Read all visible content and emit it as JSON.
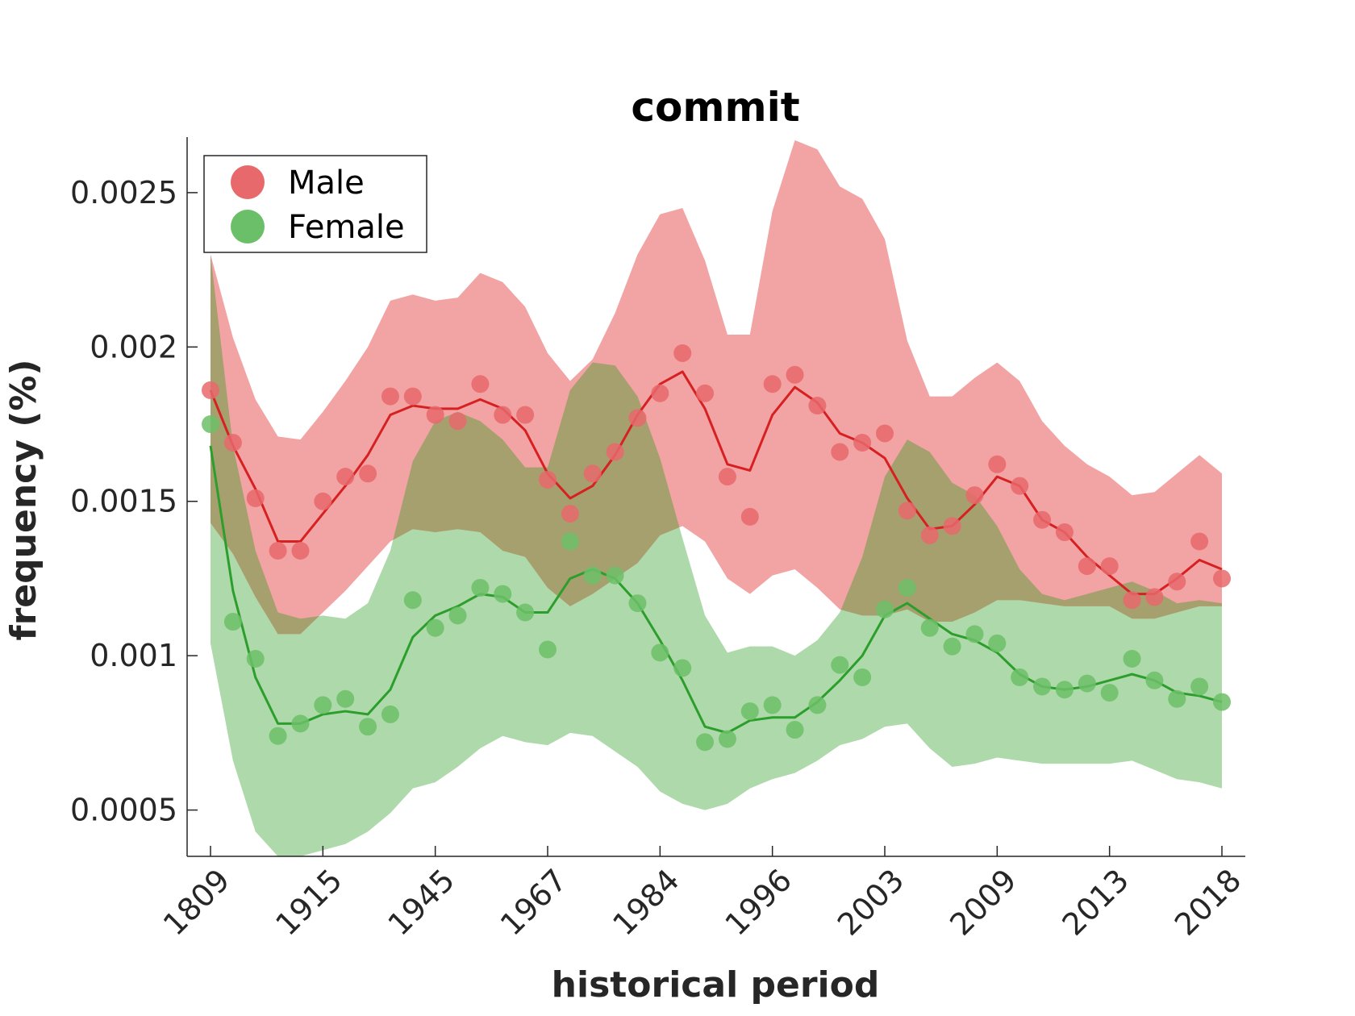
{
  "chart_data": {
    "type": "line",
    "title": "commit",
    "xlabel": "historical period",
    "ylabel": "frequency (%)",
    "ylim": [
      0.00035,
      0.00268
    ],
    "grid": false,
    "legend_placement": "top-left",
    "x_tick_labels": [
      "1809",
      "1915",
      "1945",
      "1967",
      "1984",
      "1996",
      "2003",
      "2009",
      "2013",
      "2018"
    ],
    "y_ticks": [
      0.0005,
      0.001,
      0.0015,
      0.002,
      0.0025
    ],
    "y_tick_labels": [
      "0.0005",
      "0.001",
      "0.0015",
      "0.002",
      "0.0025"
    ],
    "colors": {
      "male_point": "#e8696b",
      "male_line": "#d62021",
      "male_band": "#f2a3a4",
      "female_point": "#6cbf69",
      "female_line": "#2c9e2c",
      "female_band": "#aed9aa",
      "overlap": "#a6a06f",
      "axis": "#262626"
    },
    "legend": [
      {
        "label": "Male",
        "color": "#e8696b"
      },
      {
        "label": "Female",
        "color": "#6cbf69"
      }
    ],
    "series": [
      {
        "name": "Male",
        "points": [
          0.00186,
          0.00169,
          0.00151,
          0.00134,
          0.00134,
          0.0015,
          0.00158,
          0.00159,
          0.00184,
          0.00184,
          0.00178,
          0.00176,
          0.00188,
          0.00178,
          0.00178,
          0.00157,
          0.00146,
          0.00159,
          0.00166,
          0.00177,
          0.00185,
          0.00198,
          0.00185,
          0.00158,
          0.00145,
          0.00188,
          0.00191,
          0.00181,
          0.00166,
          0.00169,
          0.00172,
          0.00147,
          0.00139,
          0.00142,
          0.00152,
          0.00162,
          0.00155,
          0.00144,
          0.0014,
          0.00129,
          0.00129,
          0.00118,
          0.00119,
          0.00124,
          0.00137,
          0.00125
        ],
        "trend": [
          0.00186,
          0.00168,
          0.00154,
          0.00137,
          0.00137,
          0.00146,
          0.00155,
          0.00165,
          0.00178,
          0.00181,
          0.0018,
          0.0018,
          0.00183,
          0.0018,
          0.00173,
          0.00159,
          0.00151,
          0.00155,
          0.00165,
          0.00178,
          0.00188,
          0.00192,
          0.0018,
          0.00162,
          0.0016,
          0.00178,
          0.00187,
          0.00182,
          0.00172,
          0.00169,
          0.00164,
          0.00151,
          0.00141,
          0.00142,
          0.00149,
          0.00158,
          0.00155,
          0.00144,
          0.0014,
          0.00132,
          0.00126,
          0.0012,
          0.0012,
          0.00125,
          0.00131,
          0.00128
        ],
        "band_upper": [
          0.0023,
          0.00203,
          0.00183,
          0.00171,
          0.0017,
          0.00179,
          0.00189,
          0.002,
          0.00215,
          0.00217,
          0.00215,
          0.00216,
          0.00224,
          0.00221,
          0.00213,
          0.00198,
          0.00189,
          0.00196,
          0.00211,
          0.0023,
          0.00243,
          0.00245,
          0.00228,
          0.00204,
          0.00204,
          0.00244,
          0.00267,
          0.00264,
          0.00252,
          0.00248,
          0.00235,
          0.00202,
          0.00184,
          0.00184,
          0.0019,
          0.00195,
          0.00189,
          0.00176,
          0.00168,
          0.00162,
          0.00158,
          0.00152,
          0.00153,
          0.00159,
          0.00165,
          0.00159
        ],
        "band_lower": [
          0.00143,
          0.00133,
          0.00119,
          0.00107,
          0.00107,
          0.00114,
          0.00121,
          0.00129,
          0.00137,
          0.00141,
          0.0014,
          0.00141,
          0.0014,
          0.00134,
          0.00132,
          0.00122,
          0.00116,
          0.0012,
          0.00125,
          0.0013,
          0.00139,
          0.00142,
          0.00137,
          0.00125,
          0.0012,
          0.00126,
          0.00128,
          0.00122,
          0.00115,
          0.00113,
          0.00113,
          0.00115,
          0.00111,
          0.00111,
          0.00114,
          0.00118,
          0.00118,
          0.00117,
          0.00116,
          0.00116,
          0.00116,
          0.00112,
          0.00112,
          0.00114,
          0.00116,
          0.00116
        ]
      },
      {
        "name": "Female",
        "points": [
          0.00175,
          0.00111,
          0.00099,
          0.00074,
          0.00078,
          0.00084,
          0.00086,
          0.00077,
          0.00081,
          0.00118,
          0.00109,
          0.00113,
          0.00122,
          0.0012,
          0.00114,
          0.00102,
          0.00137,
          0.00126,
          0.00126,
          0.00117,
          0.00101,
          0.00096,
          0.00072,
          0.00073,
          0.00082,
          0.00084,
          0.00076,
          0.00084,
          0.00097,
          0.00093,
          0.00115,
          0.00122,
          0.00109,
          0.00103,
          0.00107,
          0.00104,
          0.00093,
          0.0009,
          0.00089,
          0.00091,
          0.00088,
          0.00099,
          0.00092,
          0.00086,
          0.0009,
          0.00085
        ],
        "trend": [
          0.00168,
          0.00121,
          0.00093,
          0.00078,
          0.00078,
          0.00081,
          0.00082,
          0.00081,
          0.00089,
          0.00106,
          0.00113,
          0.00116,
          0.0012,
          0.00119,
          0.00114,
          0.00114,
          0.00125,
          0.00128,
          0.00125,
          0.00117,
          0.00105,
          0.00092,
          0.00077,
          0.00075,
          0.00079,
          0.0008,
          0.0008,
          0.00085,
          0.00092,
          0.001,
          0.00113,
          0.00117,
          0.00112,
          0.00107,
          0.00105,
          0.00101,
          0.00094,
          0.0009,
          0.00089,
          0.0009,
          0.00092,
          0.00094,
          0.00092,
          0.00088,
          0.00087,
          0.00085
        ],
        "band_upper": [
          0.0023,
          0.00168,
          0.00134,
          0.00114,
          0.00112,
          0.00113,
          0.00112,
          0.00117,
          0.00134,
          0.00163,
          0.00176,
          0.00179,
          0.00176,
          0.0017,
          0.00161,
          0.00161,
          0.00186,
          0.00195,
          0.00194,
          0.00184,
          0.00164,
          0.00138,
          0.00113,
          0.00101,
          0.00103,
          0.00103,
          0.001,
          0.00105,
          0.00114,
          0.00132,
          0.00158,
          0.0017,
          0.00166,
          0.00156,
          0.00152,
          0.00142,
          0.00128,
          0.0012,
          0.00118,
          0.0012,
          0.00122,
          0.00124,
          0.00121,
          0.00117,
          0.00118,
          0.00117
        ],
        "band_lower": [
          0.00104,
          0.00066,
          0.00043,
          0.00035,
          0.00035,
          0.00037,
          0.00039,
          0.00043,
          0.00049,
          0.00057,
          0.00059,
          0.00064,
          0.0007,
          0.00074,
          0.00072,
          0.00071,
          0.00075,
          0.00074,
          0.00069,
          0.00064,
          0.00056,
          0.00052,
          0.0005,
          0.00052,
          0.00057,
          0.0006,
          0.00062,
          0.00066,
          0.00071,
          0.00073,
          0.00077,
          0.00078,
          0.0007,
          0.00064,
          0.00065,
          0.00067,
          0.00066,
          0.00065,
          0.00065,
          0.00065,
          0.00065,
          0.00066,
          0.00063,
          0.0006,
          0.00059,
          0.00057
        ]
      }
    ]
  }
}
